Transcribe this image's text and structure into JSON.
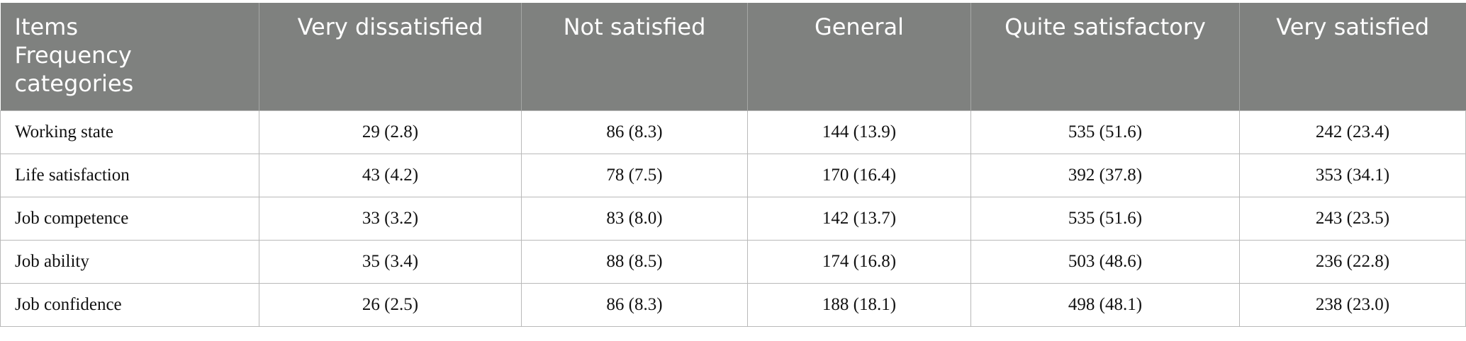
{
  "table": {
    "header": [
      [
        "Items",
        "Frequency",
        "categories"
      ],
      "Very dissatisfied",
      "Not satisfied",
      "General",
      "Quite satisfactory",
      "Very satisfied"
    ],
    "rows": [
      [
        "Working state",
        "29 (2.8)",
        "86 (8.3)",
        "144 (13.9)",
        "535 (51.6)",
        "242 (23.4)"
      ],
      [
        "Life satisfaction",
        "43 (4.2)",
        "78 (7.5)",
        "170 (16.4)",
        "392 (37.8)",
        "353 (34.1)"
      ],
      [
        "Job competence",
        "33 (3.2)",
        "83 (8.0)",
        "142 (13.7)",
        "535 (51.6)",
        "243 (23.5)"
      ],
      [
        "Job ability",
        "35 (3.4)",
        "88 (8.5)",
        "174 (16.8)",
        "503 (48.6)",
        "236 (22.8)"
      ],
      [
        "Job confidence",
        "26 (2.5)",
        "86 (8.3)",
        "188 (18.1)",
        "498 (48.1)",
        "238 (23.0)"
      ]
    ]
  }
}
